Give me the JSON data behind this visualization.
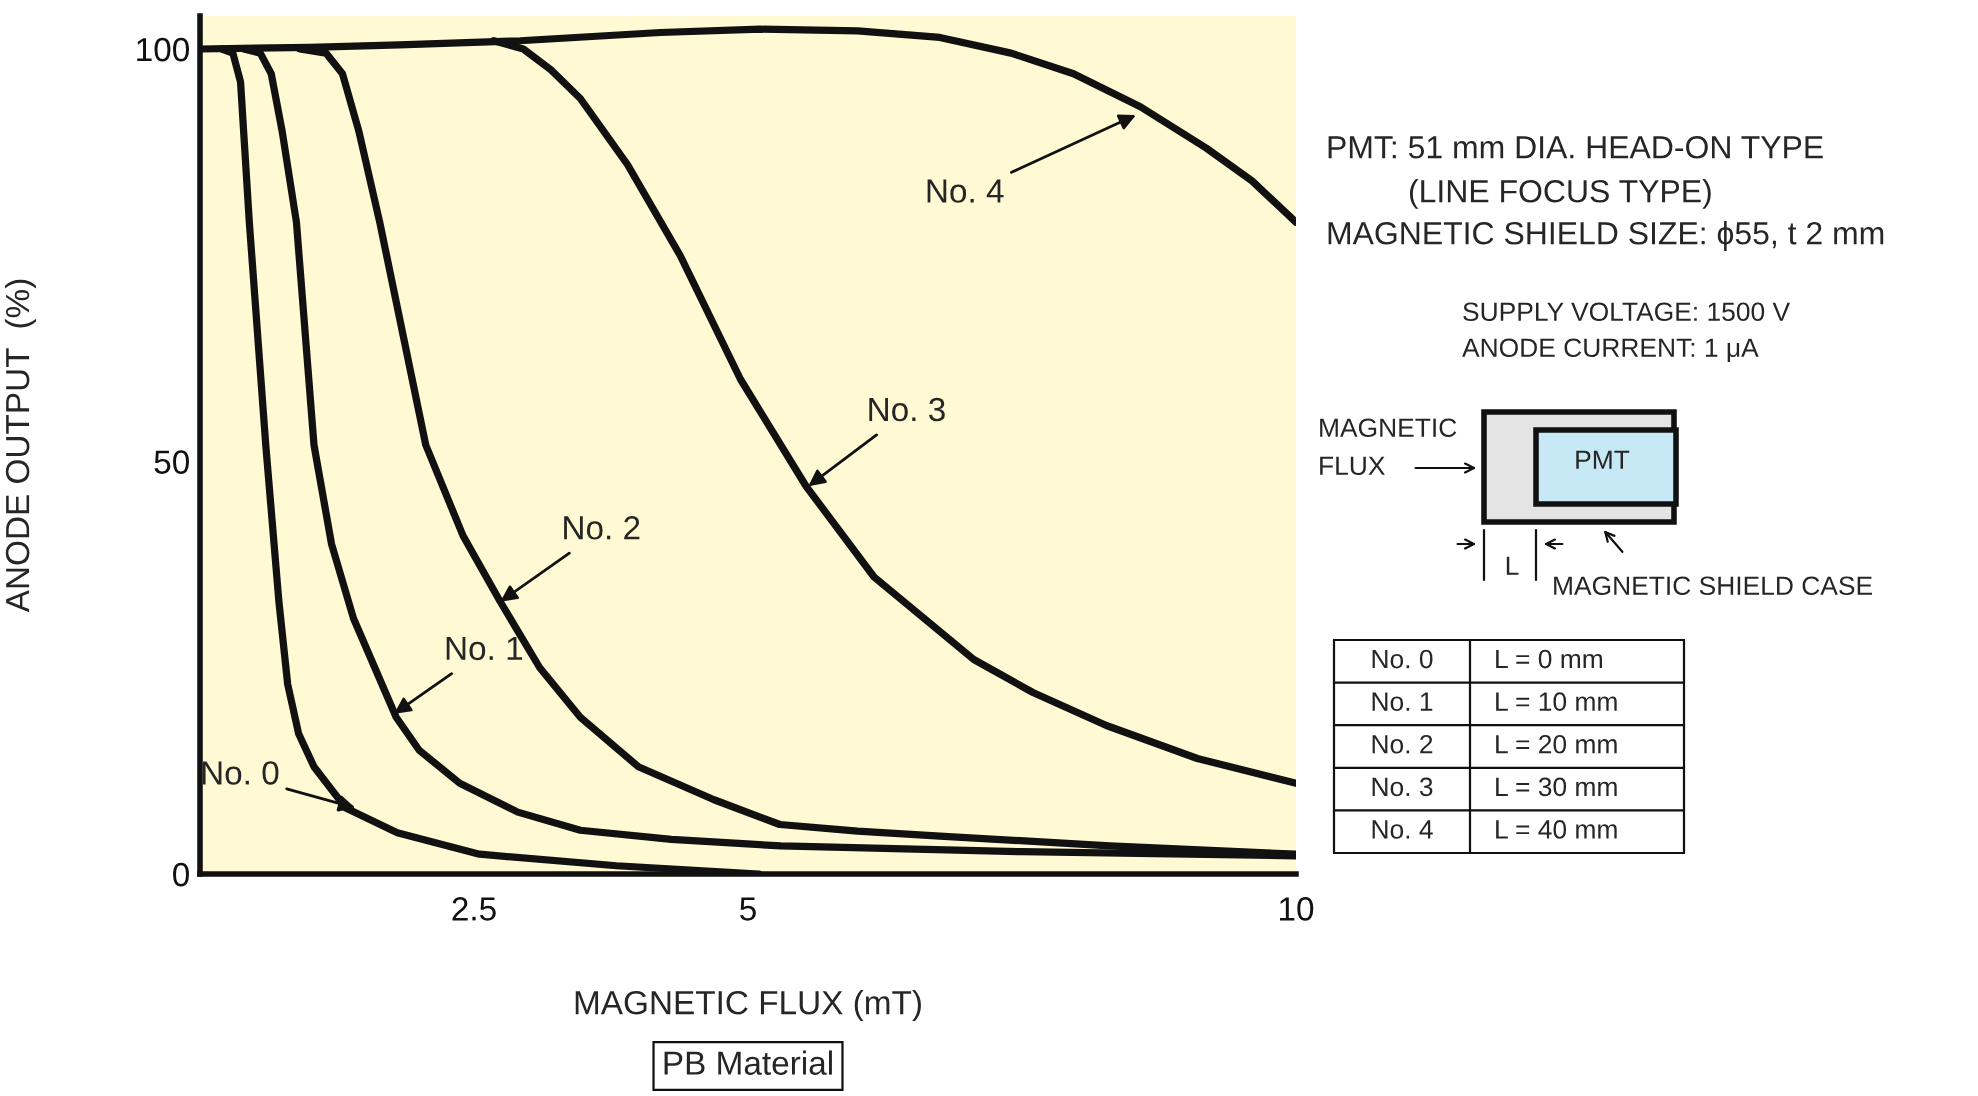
{
  "chart_data": {
    "type": "line",
    "xlabel": "MAGNETIC FLUX (mT)",
    "ylabel": "ANODE OUTPUT  (%)",
    "xlim": [
      0,
      10
    ],
    "ylim": [
      0,
      104
    ],
    "xticks": [
      2.5,
      5,
      10
    ],
    "yticks": [
      0,
      50,
      100
    ],
    "grid": false,
    "legend": false,
    "marker": "none",
    "line_style": "solid",
    "series": [
      {
        "color": "#111111",
        "x": [
          0.2,
          0.3,
          0.37,
          0.45,
          0.6,
          0.72,
          0.8,
          0.9,
          1.04,
          1.33,
          1.8,
          2.55,
          3.8,
          5.1
        ],
        "values": [
          100,
          99.5,
          96,
          79,
          52,
          33,
          23,
          17,
          13,
          8,
          5,
          2.4,
          1,
          0
        ]
      },
      {
        "color": "#111111",
        "x": [
          0.4,
          0.55,
          0.65,
          0.75,
          0.88,
          1.04,
          1.2,
          1.4,
          1.79,
          2.0,
          2.37,
          2.9,
          3.47,
          4.3,
          5.3,
          7.5,
          10
        ],
        "values": [
          100,
          99.5,
          97,
          90,
          79,
          52,
          40,
          31,
          19,
          15,
          11,
          7.5,
          5.3,
          4.2,
          3.4,
          2.7,
          2.2
        ]
      },
      {
        "color": "#111111",
        "x": [
          0.91,
          1.15,
          1.3,
          1.45,
          1.64,
          2.06,
          2.4,
          2.74,
          3.1,
          3.47,
          4.0,
          4.69,
          5.29,
          6.0,
          6.75,
          8.3,
          10
        ],
        "values": [
          100,
          99.5,
          97,
          90,
          79,
          52,
          41,
          33,
          25,
          19,
          13,
          9,
          6,
          5.2,
          4.6,
          3.4,
          2.4
        ]
      },
      {
        "color": "#111111",
        "x": [
          2.68,
          2.95,
          3.2,
          3.47,
          3.9,
          4.38,
          4.93,
          5.53,
          6.15,
          7.06,
          7.6,
          8.27,
          9.1,
          10
        ],
        "values": [
          101,
          100,
          97.5,
          94,
          86,
          75,
          60,
          47,
          36,
          26,
          22,
          18,
          14,
          11
        ]
      },
      {
        "color": "#111111",
        "x": [
          0,
          1.0,
          1.82,
          2.92,
          4.2,
          5.11,
          6.0,
          6.75,
          7.4,
          7.97,
          8.58,
          9.18,
          9.6,
          10
        ],
        "values": [
          100,
          100.2,
          100.5,
          101,
          102,
          102.4,
          102.2,
          101.4,
          99.5,
          97,
          93,
          88,
          84,
          79
        ]
      }
    ],
    "annotations": [
      {
        "text": "No. 0",
        "x": 1.42,
        "y": 8
      },
      {
        "text": "No. 1",
        "x": 1.77,
        "y": 19.4
      },
      {
        "text": "No. 2",
        "x": 2.74,
        "y": 33
      },
      {
        "text": "No. 3",
        "x": 5.55,
        "y": 47
      },
      {
        "text": "No. 4",
        "x": 8.54,
        "y": 92
      },
      "PMT: 51 mm DIA. HEAD-ON TYPE",
      "(LINE FOCUS TYPE)",
      "MAGNETIC SHIELD SIZE: ϕ55, t 2 mm",
      "SUPPLY VOLTAGE: 1500 V",
      "ANODE CURRENT: 1 μA",
      "MAGNETIC",
      "FLUX",
      "PMT",
      "L",
      "MAGNETIC SHIELD CASE",
      "No. 0",
      "L = 0 mm",
      "No. 1",
      "L = 10 mm",
      "No. 2",
      "L = 20 mm",
      "No. 3",
      "L = 30 mm",
      "No. 4",
      "L = 40 mm",
      "PB Material"
    ]
  }
}
